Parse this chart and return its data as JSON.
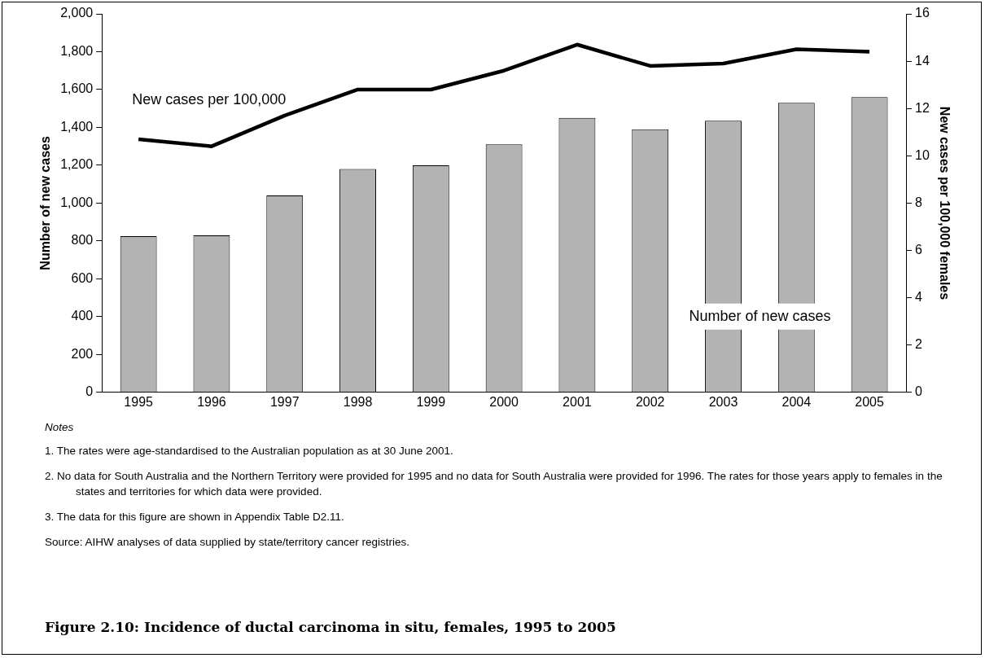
{
  "chart_data": {
    "type": "bar",
    "title": "Figure 2.10: Incidence of ductal carcinoma in situ, females, 1995 to 2005",
    "ylabel": "Number of new cases",
    "y2label": "New cases per 100,000 females",
    "categories": [
      "1995",
      "1996",
      "1997",
      "1998",
      "1999",
      "2000",
      "2001",
      "2002",
      "2003",
      "2004",
      "2005"
    ],
    "series": [
      {
        "name": "Number of new cases",
        "color": "#b3b3b3",
        "values": [
          825,
          830,
          1040,
          1180,
          1200,
          1310,
          1450,
          1390,
          1435,
          1530,
          1560
        ]
      },
      {
        "name": "New cases per 100,000",
        "type": "line",
        "axis": "y2",
        "color": "#000000",
        "values": [
          10.7,
          10.4,
          11.7,
          12.8,
          12.8,
          13.6,
          14.7,
          13.8,
          13.9,
          14.5,
          14.4
        ]
      }
    ],
    "ylim": [
      0,
      2000
    ],
    "yticks": [
      {
        "value": 0,
        "label": "0"
      },
      {
        "value": 200,
        "label": "200"
      },
      {
        "value": 400,
        "label": "400"
      },
      {
        "value": 600,
        "label": "600"
      },
      {
        "value": 800,
        "label": "800"
      },
      {
        "value": 1000,
        "label": "1,000"
      },
      {
        "value": 1200,
        "label": "1,200"
      },
      {
        "value": 1400,
        "label": "1,400"
      },
      {
        "value": 1600,
        "label": "1,600"
      },
      {
        "value": 1800,
        "label": "1,800"
      },
      {
        "value": 2000,
        "label": "2,000"
      }
    ],
    "y2lim": [
      0,
      16
    ],
    "y2ticks": [
      0,
      2,
      4,
      6,
      8,
      10,
      12,
      14,
      16
    ],
    "grid": false,
    "legend": false,
    "marker": "none",
    "line_style": "solid",
    "annotations": [
      "Notes",
      "1. The rates were age-standardised to the Australian population as at 30 June 2001.",
      "2. No data for South Australia and the Northern Territory were provided for 1995 and no data for South Australia were provided for 1996. The rates for those years apply to females in the states and territories for which data were provided.",
      "3. The data for this figure are shown in Appendix Table D2.11.",
      "Source: AIHW analyses of data supplied by state/territory cancer registries."
    ]
  }
}
